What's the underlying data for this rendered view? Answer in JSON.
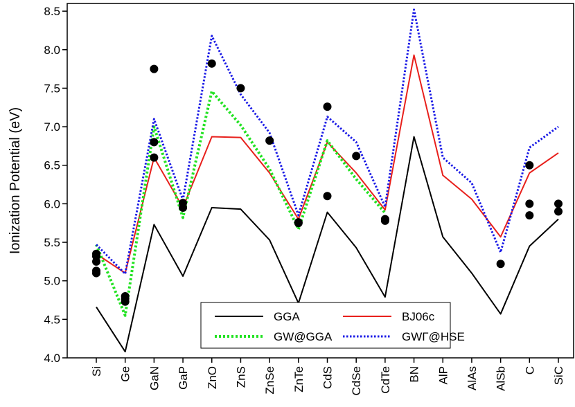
{
  "chart_data": {
    "type": "line",
    "y_label": "Ionization Potential (eV)",
    "categories": [
      "Si",
      "Ge",
      "GaN",
      "GaP",
      "ZnO",
      "ZnS",
      "ZnSe",
      "ZnTe",
      "CdS",
      "CdSe",
      "CdTe",
      "BN",
      "AlP",
      "AlAs",
      "AlSb",
      "C",
      "SiC"
    ],
    "series": [
      {
        "name": "GGA",
        "color": "#000000",
        "style": "solid",
        "values": [
          4.66,
          4.08,
          5.73,
          5.06,
          5.95,
          5.93,
          5.53,
          4.71,
          5.89,
          5.43,
          4.79,
          6.87,
          5.57,
          5.1,
          4.57,
          5.45,
          5.8
        ]
      },
      {
        "name": "BJ06c",
        "color": "#e8201c",
        "style": "solid",
        "values": [
          5.35,
          5.1,
          6.6,
          5.95,
          6.87,
          6.86,
          6.4,
          5.8,
          6.8,
          6.4,
          5.92,
          7.93,
          6.37,
          6.06,
          5.57,
          6.4,
          6.66
        ]
      },
      {
        "name": "GW@GGA",
        "color": "#22e222",
        "style": "dot-thick",
        "values": [
          5.47,
          4.55,
          7.0,
          5.82,
          7.46,
          7.02,
          6.45,
          5.67,
          6.82,
          6.32,
          5.88,
          null,
          null,
          null,
          null,
          null,
          null
        ]
      },
      {
        "name": "GWΓ@HSE",
        "color": "#1a1ae6",
        "style": "dot",
        "values": [
          5.47,
          5.09,
          7.1,
          6.05,
          8.18,
          7.42,
          6.92,
          5.85,
          7.13,
          6.8,
          5.96,
          8.52,
          6.6,
          6.27,
          5.37,
          6.73,
          7.0
        ]
      }
    ],
    "experiment": {
      "color": "#000000",
      "x": [
        "Si",
        "Si",
        "Si",
        "Si",
        "Si",
        "Ge",
        "Ge",
        "Ge",
        "GaN",
        "GaN",
        "GaN",
        "GaP",
        "GaP",
        "ZnO",
        "ZnS",
        "ZnSe",
        "ZnTe",
        "ZnTe",
        "CdS",
        "CdS",
        "CdSe",
        "CdTe",
        "CdTe",
        "AlSb",
        "C",
        "C",
        "C",
        "SiC",
        "SiC"
      ],
      "values": [
        5.35,
        5.32,
        5.25,
        5.13,
        5.1,
        4.8,
        4.77,
        4.73,
        7.75,
        6.8,
        6.6,
        6.01,
        5.95,
        7.82,
        7.5,
        6.82,
        5.76,
        5.75,
        7.26,
        6.1,
        6.62,
        5.8,
        5.78,
        5.22,
        6.5,
        6.0,
        5.85,
        6.0,
        5.9
      ]
    },
    "ylim": [
      4.0,
      8.6
    ],
    "yticks": [
      {
        "value": 4,
        "label": "4.0"
      },
      {
        "value": 4.5,
        "label": "4.5"
      },
      {
        "value": 5,
        "label": "5.0"
      },
      {
        "value": 5.5,
        "label": "5.5"
      },
      {
        "value": 6,
        "label": "6.0"
      },
      {
        "value": 6.5,
        "label": "6.5"
      },
      {
        "value": 7,
        "label": "7.0"
      },
      {
        "value": 7.5,
        "label": "7.5"
      },
      {
        "value": 8,
        "label": "8.0"
      },
      {
        "value": 8.5,
        "label": "8.5"
      }
    ],
    "legend": "bottom-center"
  }
}
